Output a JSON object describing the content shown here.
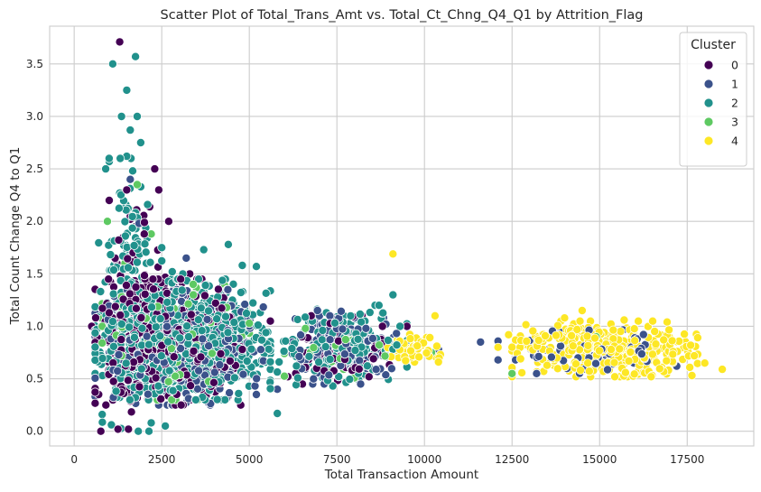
{
  "chart_data": {
    "type": "scatter",
    "title": "Scatter Plot of Total_Trans_Amt vs. Total_Ct_Chng_Q4_Q1 by Attrition_Flag",
    "xlabel": "Total Transaction Amount",
    "ylabel": "Total Count Change Q4 to Q1",
    "xlim": [
      -700,
      19400
    ],
    "ylim": [
      -0.14,
      3.86
    ],
    "x_ticks": [
      0,
      2500,
      5000,
      7500,
      10000,
      12500,
      15000,
      17500
    ],
    "y_ticks": [
      0.0,
      0.5,
      1.0,
      1.5,
      2.0,
      2.5,
      3.0,
      3.5
    ],
    "grid": true,
    "legend": {
      "title": "Cluster",
      "placement": "top-right",
      "entries": [
        "0",
        "1",
        "2",
        "3",
        "4"
      ]
    },
    "series": [
      {
        "name": "0",
        "color": "#440154",
        "clusters": [
          {
            "x": [
              600,
              4800
            ],
            "y": [
              0.25,
              1.45
            ],
            "n": 520
          },
          {
            "x": [
              800,
              2600
            ],
            "y": [
              0.0,
              2.3
            ],
            "n": 90
          },
          {
            "x": [
              6000,
              9000
            ],
            "y": [
              0.45,
              1.1
            ],
            "n": 70
          }
        ],
        "points": [
          {
            "x": 1300,
            "y": 3.71
          },
          {
            "x": 2700,
            "y": 2.0
          },
          {
            "x": 2300,
            "y": 2.5
          },
          {
            "x": 2000,
            "y": 1.88
          },
          {
            "x": 1600,
            "y": 2.02
          },
          {
            "x": 1000,
            "y": 2.2
          },
          {
            "x": 1500,
            "y": 2.3
          },
          {
            "x": 500,
            "y": 1.0
          },
          {
            "x": 700,
            "y": 0.35
          },
          {
            "x": 760,
            "y": 0.0
          },
          {
            "x": 1250,
            "y": 0.02
          },
          {
            "x": 1550,
            "y": 0.02
          },
          {
            "x": 3300,
            "y": 1.5
          },
          {
            "x": 5600,
            "y": 1.05
          },
          {
            "x": 6100,
            "y": 0.52
          },
          {
            "x": 6500,
            "y": 0.9
          },
          {
            "x": 7000,
            "y": 0.75
          },
          {
            "x": 8800,
            "y": 1.0
          },
          {
            "x": 9500,
            "y": 1.0
          },
          {
            "x": 8600,
            "y": 1.2
          }
        ]
      },
      {
        "name": "1",
        "color": "#3b528b",
        "clusters": [
          {
            "x": [
              600,
              5400
            ],
            "y": [
              0.25,
              1.35
            ],
            "n": 380
          },
          {
            "x": [
              6000,
              9200
            ],
            "y": [
              0.45,
              1.15
            ],
            "n": 130
          },
          {
            "x": [
              13000,
              16700
            ],
            "y": [
              0.55,
              0.98
            ],
            "n": 65
          }
        ],
        "points": [
          {
            "x": 1100,
            "y": 3.5
          },
          {
            "x": 1600,
            "y": 2.4
          },
          {
            "x": 1850,
            "y": 1.98
          },
          {
            "x": 3200,
            "y": 1.65
          },
          {
            "x": 5800,
            "y": 0.4
          },
          {
            "x": 5200,
            "y": 0.35
          },
          {
            "x": 7300,
            "y": 1.1
          },
          {
            "x": 7000,
            "y": 1.1
          },
          {
            "x": 8000,
            "y": 1.08
          },
          {
            "x": 8900,
            "y": 1.02
          },
          {
            "x": 11600,
            "y": 0.85
          },
          {
            "x": 12100,
            "y": 0.86
          },
          {
            "x": 12100,
            "y": 0.68
          },
          {
            "x": 12600,
            "y": 0.68
          },
          {
            "x": 13200,
            "y": 0.55
          },
          {
            "x": 17200,
            "y": 0.62
          },
          {
            "x": 10400,
            "y": 0.78
          }
        ]
      },
      {
        "name": "2",
        "color": "#21918c",
        "clusters": [
          {
            "x": [
              600,
              5600
            ],
            "y": [
              0.3,
              1.45
            ],
            "n": 900
          },
          {
            "x": [
              700,
              2500
            ],
            "y": [
              0.0,
              2.6
            ],
            "n": 140
          },
          {
            "x": [
              5800,
              9500
            ],
            "y": [
              0.4,
              1.2
            ],
            "n": 150
          }
        ],
        "points": [
          {
            "x": 1100,
            "y": 3.5
          },
          {
            "x": 1350,
            "y": 3.0
          },
          {
            "x": 1500,
            "y": 3.25
          },
          {
            "x": 1750,
            "y": 3.57
          },
          {
            "x": 1800,
            "y": 3.0
          },
          {
            "x": 1900,
            "y": 2.75
          },
          {
            "x": 1600,
            "y": 2.87
          },
          {
            "x": 1500,
            "y": 2.62
          },
          {
            "x": 1000,
            "y": 2.57
          },
          {
            "x": 900,
            "y": 2.5
          },
          {
            "x": 1900,
            "y": 2.33
          },
          {
            "x": 1300,
            "y": 2.27
          },
          {
            "x": 2500,
            "y": 1.75
          },
          {
            "x": 3700,
            "y": 1.73
          },
          {
            "x": 4400,
            "y": 1.78
          },
          {
            "x": 4800,
            "y": 1.58
          },
          {
            "x": 5200,
            "y": 1.57
          },
          {
            "x": 3100,
            "y": 1.5
          },
          {
            "x": 2800,
            "y": 1.52
          },
          {
            "x": 5800,
            "y": 0.17
          },
          {
            "x": 2200,
            "y": 0.08
          },
          {
            "x": 2600,
            "y": 0.05
          },
          {
            "x": 800,
            "y": 0.16
          },
          {
            "x": 9100,
            "y": 1.3
          },
          {
            "x": 8700,
            "y": 1.2
          },
          {
            "x": 7200,
            "y": 1.13
          },
          {
            "x": 7700,
            "y": 1.1
          },
          {
            "x": 6800,
            "y": 1.05
          },
          {
            "x": 8300,
            "y": 1.05
          },
          {
            "x": 9300,
            "y": 1.0
          }
        ]
      },
      {
        "name": "3",
        "color": "#5ec962",
        "clusters": [
          {
            "x": [
              800,
              5000
            ],
            "y": [
              0.3,
              1.4
            ],
            "n": 110
          },
          {
            "x": [
              6000,
              10000
            ],
            "y": [
              0.5,
              1.0
            ],
            "n": 25
          }
        ],
        "points": [
          {
            "x": 1800,
            "y": 2.35
          },
          {
            "x": 1650,
            "y": 2.1
          },
          {
            "x": 950,
            "y": 2.0
          },
          {
            "x": 2200,
            "y": 1.88
          },
          {
            "x": 1450,
            "y": 1.6
          },
          {
            "x": 3400,
            "y": 1.3
          },
          {
            "x": 2900,
            "y": 0.3
          },
          {
            "x": 6600,
            "y": 0.98
          },
          {
            "x": 10200,
            "y": 0.75
          },
          {
            "x": 12500,
            "y": 0.55
          },
          {
            "x": 14900,
            "y": 0.9
          }
        ]
      },
      {
        "name": "4",
        "color": "#fde725",
        "clusters": [
          {
            "x": [
              12500,
              17800
            ],
            "y": [
              0.52,
              1.05
            ],
            "n": 340
          },
          {
            "x": [
              8800,
              10500
            ],
            "y": [
              0.6,
              0.95
            ],
            "n": 45
          }
        ],
        "points": [
          {
            "x": 9100,
            "y": 1.69
          },
          {
            "x": 10300,
            "y": 1.1
          },
          {
            "x": 14500,
            "y": 1.15
          },
          {
            "x": 14000,
            "y": 1.08
          },
          {
            "x": 15700,
            "y": 1.06
          },
          {
            "x": 17600,
            "y": 0.82
          },
          {
            "x": 18000,
            "y": 0.65
          },
          {
            "x": 18500,
            "y": 0.59
          },
          {
            "x": 17100,
            "y": 0.76
          },
          {
            "x": 12100,
            "y": 0.8
          },
          {
            "x": 12400,
            "y": 0.92
          },
          {
            "x": 10400,
            "y": 0.66
          },
          {
            "x": 9900,
            "y": 0.85
          }
        ]
      }
    ]
  }
}
